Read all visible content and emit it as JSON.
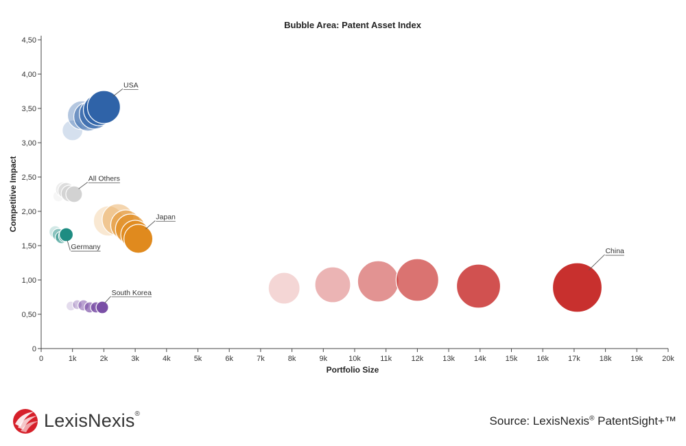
{
  "chart_data": {
    "type": "scatter",
    "subtype": "bubble",
    "title": "Bubble Area:  Patent Asset Index",
    "xlabel": "Portfolio Size",
    "ylabel": "Competitive Impact",
    "xlim": [
      0,
      20000
    ],
    "ylim": [
      0,
      4.5
    ],
    "x_ticks": [
      0,
      1000,
      2000,
      3000,
      4000,
      5000,
      6000,
      7000,
      8000,
      9000,
      10000,
      11000,
      12000,
      13000,
      14000,
      15000,
      16000,
      17000,
      18000,
      19000,
      20000
    ],
    "x_tick_labels": [
      "0",
      "1k",
      "2k",
      "3k",
      "4k",
      "5k",
      "6k",
      "7k",
      "8k",
      "9k",
      "10k",
      "11k",
      "12k",
      "13k",
      "14k",
      "15k",
      "16k",
      "17k",
      "18k",
      "19k",
      "20k"
    ],
    "y_ticks": [
      0,
      0.5,
      1.0,
      1.5,
      2.0,
      2.5,
      3.0,
      3.5,
      4.0,
      4.5
    ],
    "y_tick_labels": [
      "0",
      "0,50",
      "1,00",
      "1,50",
      "2,00",
      "2,50",
      "3,00",
      "3,50",
      "4,00",
      "4,50"
    ],
    "grid": false,
    "series": [
      {
        "name": "USA",
        "color": "#2f63a8",
        "points": [
          {
            "x": 1000,
            "y": 3.18,
            "size": 15
          },
          {
            "x": 1300,
            "y": 3.4,
            "size": 21
          },
          {
            "x": 1500,
            "y": 3.38,
            "size": 21
          },
          {
            "x": 1700,
            "y": 3.42,
            "size": 22
          },
          {
            "x": 1850,
            "y": 3.48,
            "size": 23
          },
          {
            "x": 2000,
            "y": 3.52,
            "size": 24
          }
        ]
      },
      {
        "name": "All Others",
        "color": "#d2d2d2",
        "points": [
          {
            "x": 550,
            "y": 2.22,
            "size": 8
          },
          {
            "x": 700,
            "y": 2.32,
            "size": 11
          },
          {
            "x": 800,
            "y": 2.3,
            "size": 12
          },
          {
            "x": 900,
            "y": 2.26,
            "size": 12
          },
          {
            "x": 1050,
            "y": 2.25,
            "size": 12
          }
        ]
      },
      {
        "name": "Japan",
        "color": "#e08a1e",
        "points": [
          {
            "x": 2150,
            "y": 1.86,
            "size": 22
          },
          {
            "x": 2450,
            "y": 1.88,
            "size": 23
          },
          {
            "x": 2700,
            "y": 1.8,
            "size": 22
          },
          {
            "x": 2850,
            "y": 1.74,
            "size": 22
          },
          {
            "x": 3000,
            "y": 1.66,
            "size": 21
          },
          {
            "x": 3100,
            "y": 1.6,
            "size": 21
          }
        ]
      },
      {
        "name": "Germany",
        "color": "#1e8c82",
        "points": [
          {
            "x": 450,
            "y": 1.7,
            "size": 9
          },
          {
            "x": 550,
            "y": 1.66,
            "size": 9
          },
          {
            "x": 650,
            "y": 1.62,
            "size": 9
          },
          {
            "x": 750,
            "y": 1.64,
            "size": 9
          },
          {
            "x": 800,
            "y": 1.66,
            "size": 10
          }
        ]
      },
      {
        "name": "South Korea",
        "color": "#7a4fa6",
        "points": [
          {
            "x": 950,
            "y": 0.62,
            "size": 7
          },
          {
            "x": 1150,
            "y": 0.64,
            "size": 7
          },
          {
            "x": 1350,
            "y": 0.63,
            "size": 8
          },
          {
            "x": 1550,
            "y": 0.6,
            "size": 8
          },
          {
            "x": 1750,
            "y": 0.6,
            "size": 8
          },
          {
            "x": 1950,
            "y": 0.6,
            "size": 9
          }
        ]
      },
      {
        "name": "China",
        "color": "#c8302e",
        "points": [
          {
            "x": 7750,
            "y": 0.88,
            "size": 23
          },
          {
            "x": 9300,
            "y": 0.93,
            "size": 26
          },
          {
            "x": 10750,
            "y": 0.98,
            "size": 30
          },
          {
            "x": 12000,
            "y": 1.0,
            "size": 31
          },
          {
            "x": 13950,
            "y": 0.91,
            "size": 32
          },
          {
            "x": 17100,
            "y": 0.89,
            "size": 36
          }
        ]
      }
    ],
    "annotations": [
      {
        "text": "USA",
        "series": "USA"
      },
      {
        "text": "All Others",
        "series": "All Others"
      },
      {
        "text": "Japan",
        "series": "Japan"
      },
      {
        "text": "Germany",
        "series": "Germany"
      },
      {
        "text": "South Korea",
        "series": "South Korea"
      },
      {
        "text": "China",
        "series": "China"
      }
    ]
  },
  "footer": {
    "logo_text": "LexisNexis",
    "logo_reg": "®",
    "source_prefix": "Source: LexisNexis",
    "source_reg": "®",
    "source_product": " PatentSight+™"
  },
  "colors": {
    "axis": "#444444",
    "logo_red": "#d6202a"
  }
}
